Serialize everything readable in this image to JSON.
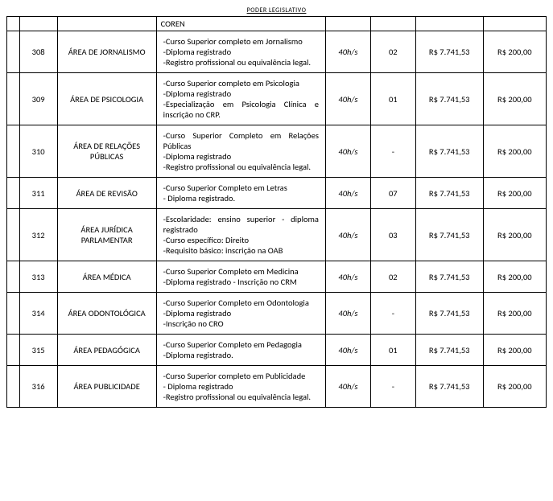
{
  "header": "PODER LEGISLATIVO",
  "corenLabel": "COREN",
  "rows": [
    {
      "code": "308",
      "area": "ÁREA DE JORNALISMO",
      "req": "-Curso Superior completo em Jornalismo\n-Diploma registrado\n-Registro profissional ou equivalência legal.",
      "hours": "40h/s",
      "vac": "02",
      "salary": "R$ 7.741,53",
      "fee": "R$ 200,00"
    },
    {
      "code": "309",
      "area": "ÁREA DE PSICOLOGIA",
      "req": "-Curso Superior completo em Psicologia\n-Diploma registrado\n-Especialização em Psicologia Clínica e inscrição no CRP.",
      "hours": "40h/s",
      "vac": "01",
      "salary": "R$ 7.741,53",
      "fee": "R$ 200,00"
    },
    {
      "code": "310",
      "area": "ÁREA DE RELAÇÕES PÚBLICAS",
      "req": "-Curso Superior Completo em Relações Públicas\n-Diploma registrado\n-Registro profissional ou equivalência legal.",
      "hours": "40h/s",
      "vac": "-",
      "salary": "R$ 7.741,53",
      "fee": "R$ 200,00"
    },
    {
      "code": "311",
      "area": "ÁREA DE REVISÃO",
      "req": "-Curso Superior Completo em Letras\n- Diploma registrado.",
      "hours": "40h/s",
      "vac": "07",
      "salary": "R$ 7.741,53",
      "fee": "R$ 200,00"
    },
    {
      "code": "312",
      "area": "ÁREA JURÍDICA PARLAMENTAR",
      "req": "-Escolaridade: ensino superior - diploma registrado\n-Curso específico: Direito\n-Requisito básico: inscrição na OAB",
      "hours": "40h/s",
      "vac": "03",
      "salary": "R$ 7.741,53",
      "fee": "R$ 200,00"
    },
    {
      "code": "313",
      "area": "ÁREA MÉDICA",
      "req": "-Curso Superior Completo em Medicina\n-Diploma registrado - Inscrição no CRM",
      "hours": "40h/s",
      "vac": "02",
      "salary": "R$ 7.741,53",
      "fee": "R$ 200,00"
    },
    {
      "code": "314",
      "area": "ÁREA ODONTOLÓGICA",
      "req": "-Curso Superior Completo em Odontologia\n-Diploma registrado\n-Inscrição no CRO",
      "hours": "40h/s",
      "vac": "-",
      "salary": "R$ 7.741,53",
      "fee": "R$ 200,00"
    },
    {
      "code": "315",
      "area": "ÁREA PEDAGÓGICA",
      "req": "-Curso Superior Completo em Pedagogia\n-Diploma registrado.",
      "hours": "40h/s",
      "vac": "01",
      "salary": "R$ 7.741,53",
      "fee": "R$ 200,00"
    },
    {
      "code": "316",
      "area": "ÁREA PUBLICIDADE",
      "req": "-Curso Superior completo em Publicidade\n- Diploma registrado\n-Registro profissional ou equivalência legal.",
      "hours": "40h/s",
      "vac": "-",
      "salary": "R$ 7.741,53",
      "fee": "R$ 200,00"
    }
  ]
}
